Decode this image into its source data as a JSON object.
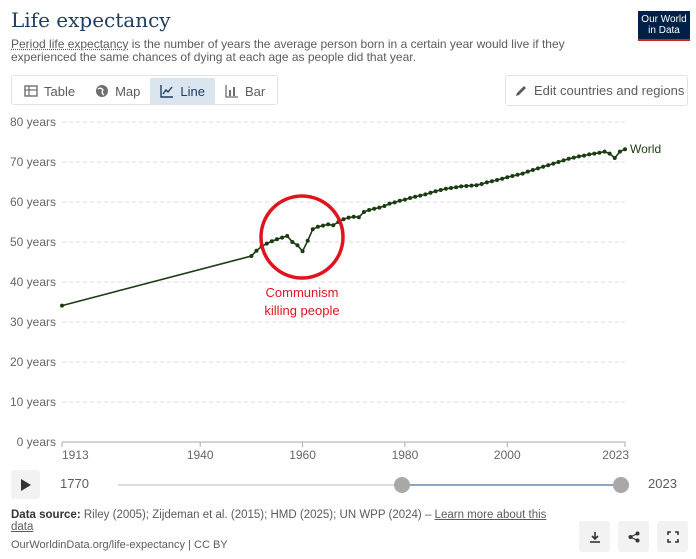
{
  "header": {
    "title": "Life expectancy",
    "subtitle_link": "Period life expectancy",
    "subtitle_rest": " is the number of years the average person born in a certain year would live if they experienced the same chances of dying at each age as people did that year.",
    "logo_line1": "Our World",
    "logo_line2": "in Data"
  },
  "tabs": [
    {
      "label": "Table",
      "icon": "table-icon"
    },
    {
      "label": "Map",
      "icon": "globe-icon"
    },
    {
      "label": "Line",
      "icon": "line-chart-icon",
      "active": true
    },
    {
      "label": "Bar",
      "icon": "bar-chart-icon"
    }
  ],
  "edit_button": {
    "label": "Edit countries and regions",
    "icon": "pencil-icon"
  },
  "annotation": {
    "line1": "Communism",
    "line2": "killing people",
    "color": "#e0141e"
  },
  "timeline": {
    "start": "1770",
    "end": "2023"
  },
  "footer": {
    "source_label": "Data source:",
    "source_text": " Riley (2005); Zijdeman et al. (2015); HMD (2025); UN WPP (2024) – ",
    "learn_more": "Learn more about this data",
    "license": "OurWorldinData.org/life-expectancy | CC BY"
  },
  "colors": {
    "series": "#1b3c12",
    "title": "#1d3d63",
    "annotation": "#e0141e"
  },
  "chart_data": {
    "type": "line",
    "y_ticks": [
      "0 years",
      "10 years",
      "20 years",
      "30 years",
      "40 years",
      "50 years",
      "60 years",
      "70 years",
      "80 years"
    ],
    "x_ticks": [
      "1913",
      "1940",
      "1960",
      "1980",
      "2000",
      "2023"
    ],
    "ylim": [
      0,
      80
    ],
    "grid": true,
    "series": [
      {
        "name": "World",
        "color": "#1b3c12",
        "x": [
          1913,
          1950,
          1951,
          1952,
          1953,
          1954,
          1955,
          1956,
          1957,
          1958,
          1959,
          1960,
          1961,
          1962,
          1963,
          1964,
          1965,
          1966,
          1967,
          1968,
          1969,
          1970,
          1971,
          1972,
          1973,
          1974,
          1975,
          1976,
          1977,
          1978,
          1979,
          1980,
          1981,
          1982,
          1983,
          1984,
          1985,
          1986,
          1987,
          1988,
          1989,
          1990,
          1991,
          1992,
          1993,
          1994,
          1995,
          1996,
          1997,
          1998,
          1999,
          2000,
          2001,
          2002,
          2003,
          2004,
          2005,
          2006,
          2007,
          2008,
          2009,
          2010,
          2011,
          2012,
          2013,
          2014,
          2015,
          2016,
          2017,
          2018,
          2019,
          2020,
          2021,
          2022,
          2023
        ],
        "values": [
          34.1,
          46.5,
          47.8,
          48.9,
          49.6,
          50.2,
          50.7,
          51.1,
          51.5,
          50.0,
          49.2,
          47.7,
          50.3,
          53.2,
          53.8,
          54.1,
          54.4,
          54.2,
          55.0,
          55.7,
          56.1,
          56.3,
          56.2,
          57.5,
          58.0,
          58.3,
          58.6,
          59.0,
          59.6,
          59.9,
          60.3,
          60.6,
          61.0,
          61.3,
          61.6,
          61.9,
          62.3,
          62.7,
          63.0,
          63.3,
          63.5,
          63.7,
          63.9,
          64.0,
          64.1,
          64.2,
          64.5,
          64.9,
          65.2,
          65.5,
          65.8,
          66.2,
          66.5,
          66.8,
          67.1,
          67.6,
          68.0,
          68.4,
          68.8,
          69.2,
          69.6,
          70.0,
          70.4,
          70.8,
          71.1,
          71.4,
          71.6,
          71.9,
          72.1,
          72.3,
          72.6,
          72.1,
          71.0,
          72.6,
          73.2
        ]
      }
    ]
  }
}
